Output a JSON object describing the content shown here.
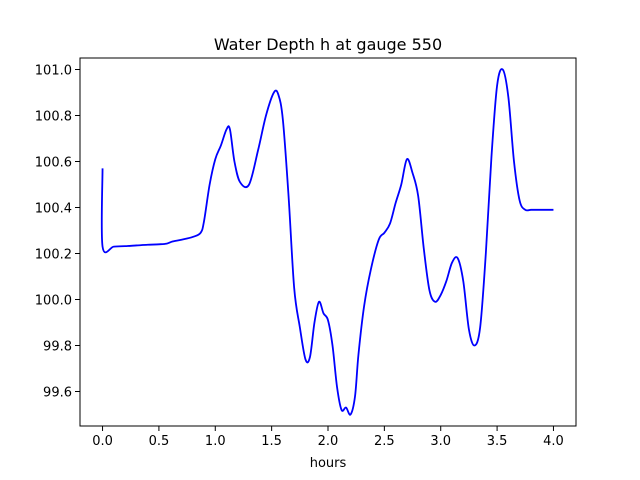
{
  "chart_data": {
    "type": "line",
    "title": "Water Depth h at gauge 550",
    "xlabel": "hours",
    "ylabel": "",
    "xlim": [
      -0.2,
      4.2
    ],
    "ylim": [
      99.45,
      101.05
    ],
    "xticks": [
      0.0,
      0.5,
      1.0,
      1.5,
      2.0,
      2.5,
      3.0,
      3.5,
      4.0
    ],
    "xtick_labels": [
      "0.0",
      "0.5",
      "1.0",
      "1.5",
      "2.0",
      "2.5",
      "3.0",
      "3.5",
      "4.0"
    ],
    "yticks": [
      99.6,
      99.8,
      100.0,
      100.2,
      100.4,
      100.6,
      100.8,
      101.0
    ],
    "ytick_labels": [
      "99.6",
      "99.8",
      "100.0",
      "100.2",
      "100.4",
      "100.6",
      "100.8",
      "101.0"
    ],
    "grid": false,
    "series": [
      {
        "color": "#0000ff",
        "x": [
          0.0,
          0.0,
          0.1,
          0.2,
          0.3,
          0.4,
          0.5,
          0.57,
          0.62,
          0.7,
          0.8,
          0.87,
          0.9,
          0.95,
          1.0,
          1.05,
          1.1,
          1.13,
          1.17,
          1.22,
          1.3,
          1.38,
          1.45,
          1.52,
          1.56,
          1.6,
          1.65,
          1.7,
          1.75,
          1.8,
          1.84,
          1.88,
          1.92,
          1.96,
          2.0,
          2.04,
          2.08,
          2.12,
          2.16,
          2.2,
          2.24,
          2.27,
          2.32,
          2.38,
          2.45,
          2.5,
          2.55,
          2.6,
          2.65,
          2.7,
          2.75,
          2.8,
          2.85,
          2.9,
          2.95,
          3.0,
          3.05,
          3.1,
          3.15,
          3.2,
          3.25,
          3.3,
          3.35,
          3.4,
          3.45,
          3.5,
          3.55,
          3.6,
          3.65,
          3.7,
          3.75,
          3.8,
          3.85,
          3.9,
          3.95,
          4.0
        ],
        "y": [
          100.57,
          100.23,
          100.23,
          100.232,
          100.235,
          100.238,
          100.24,
          100.243,
          100.252,
          100.26,
          100.272,
          100.29,
          100.34,
          100.5,
          100.61,
          100.67,
          100.74,
          100.74,
          100.6,
          100.51,
          100.5,
          100.65,
          100.8,
          100.9,
          100.89,
          100.78,
          100.45,
          100.05,
          99.88,
          99.74,
          99.75,
          99.9,
          99.99,
          99.94,
          99.91,
          99.8,
          99.62,
          99.52,
          99.53,
          99.5,
          99.58,
          99.76,
          99.97,
          100.13,
          100.26,
          100.29,
          100.33,
          100.42,
          100.5,
          100.61,
          100.55,
          100.45,
          100.22,
          100.04,
          99.99,
          100.02,
          100.08,
          100.16,
          100.18,
          100.08,
          99.87,
          99.8,
          99.88,
          100.2,
          100.62,
          100.93,
          101.0,
          100.88,
          100.6,
          100.43,
          100.39,
          100.39,
          100.39,
          100.39,
          100.39,
          100.39
        ]
      }
    ]
  }
}
